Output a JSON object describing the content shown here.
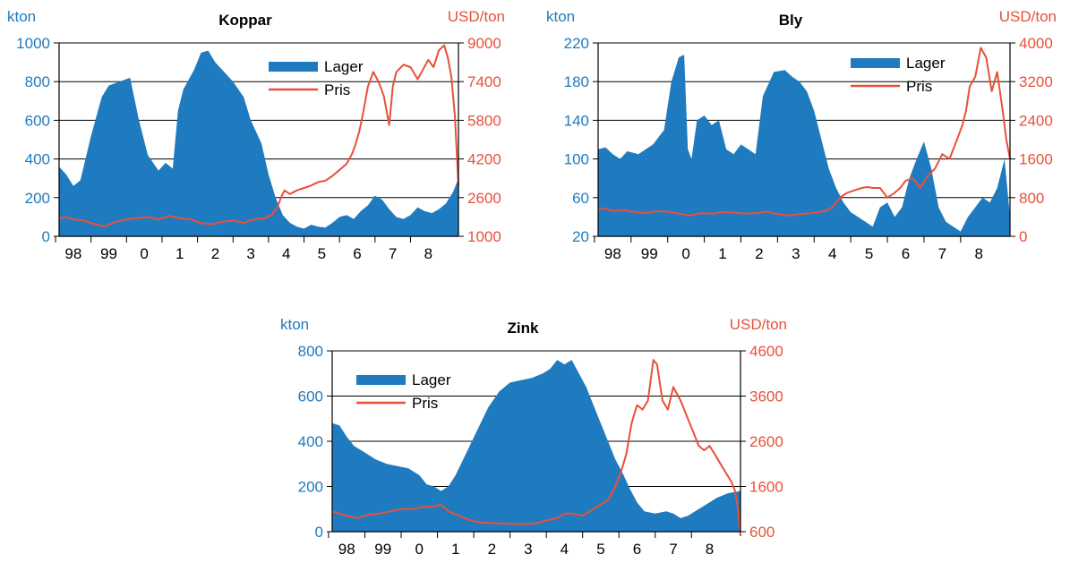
{
  "colors": {
    "lager": "#1f7bbf",
    "pris": "#e8503a",
    "axis_left": "#1f7bbf",
    "axis_right": "#e8503a",
    "grid": "#000000"
  },
  "x_tick_labels": [
    "98",
    "99",
    "0",
    "1",
    "2",
    "3",
    "4",
    "5",
    "6",
    "7",
    "8"
  ],
  "chart_data": [
    {
      "type": "area",
      "title": "Koppar",
      "left_unit": "kton",
      "right_unit": "USD/ton",
      "legend": [
        "Lager",
        "Pris"
      ],
      "legend_position": "top-right",
      "grid": true,
      "x_range": [
        1997.6,
        2008.85
      ],
      "x_ticks": [
        1998,
        1999,
        2000,
        2001,
        2002,
        2003,
        2004,
        2005,
        2006,
        2007,
        2008
      ],
      "left_axis": {
        "range": [
          0,
          1000
        ],
        "ticks": [
          "0",
          "200",
          "400",
          "600",
          "800",
          "1000"
        ]
      },
      "right_axis": {
        "range": [
          1000,
          9000
        ],
        "ticks": [
          "1000",
          "2600",
          "4200",
          "5800",
          "7400",
          "9000"
        ]
      },
      "series": [
        {
          "name": "Lager",
          "kind": "area",
          "axis": "left",
          "x": [
            1997.6,
            1997.8,
            1998.0,
            1998.2,
            1998.5,
            1998.8,
            1999.0,
            1999.3,
            1999.6,
            1999.85,
            2000.1,
            2000.4,
            2000.6,
            2000.8,
            2000.95,
            2001.1,
            2001.4,
            2001.6,
            2001.8,
            2002.0,
            2002.2,
            2002.5,
            2002.8,
            2003.0,
            2003.3,
            2003.5,
            2003.7,
            2003.9,
            2004.1,
            2004.3,
            2004.5,
            2004.7,
            2004.9,
            2005.1,
            2005.3,
            2005.5,
            2005.7,
            2005.9,
            2006.1,
            2006.3,
            2006.5,
            2006.7,
            2006.9,
            2007.1,
            2007.3,
            2007.5,
            2007.7,
            2007.9,
            2008.1,
            2008.3,
            2008.5,
            2008.7,
            2008.85
          ],
          "y": [
            360,
            320,
            260,
            290,
            520,
            720,
            780,
            800,
            820,
            600,
            420,
            340,
            380,
            350,
            650,
            760,
            860,
            950,
            960,
            900,
            860,
            800,
            720,
            600,
            480,
            320,
            200,
            110,
            70,
            50,
            40,
            60,
            50,
            45,
            70,
            100,
            110,
            90,
            130,
            160,
            210,
            190,
            140,
            100,
            90,
            110,
            150,
            130,
            120,
            140,
            170,
            230,
            300
          ]
        },
        {
          "name": "Pris",
          "kind": "line",
          "axis": "right",
          "x": [
            1997.6,
            1997.8,
            1998.0,
            1998.3,
            1998.6,
            1998.9,
            1999.2,
            1999.5,
            1999.8,
            2000.1,
            2000.4,
            2000.7,
            2001.0,
            2001.3,
            2001.6,
            2001.9,
            2002.2,
            2002.5,
            2002.8,
            2003.1,
            2003.4,
            2003.6,
            2003.75,
            2003.85,
            2003.95,
            2004.1,
            2004.3,
            2004.5,
            2004.7,
            2004.9,
            2005.1,
            2005.3,
            2005.5,
            2005.7,
            2005.85,
            2005.95,
            2006.05,
            2006.15,
            2006.3,
            2006.45,
            2006.6,
            2006.75,
            2006.9,
            2007.0,
            2007.1,
            2007.3,
            2007.5,
            2007.7,
            2007.85,
            2008.0,
            2008.15,
            2008.3,
            2008.45,
            2008.55,
            2008.65,
            2008.75,
            2008.85
          ],
          "y": [
            1750,
            1800,
            1700,
            1650,
            1500,
            1420,
            1600,
            1700,
            1750,
            1800,
            1700,
            1850,
            1750,
            1700,
            1550,
            1500,
            1600,
            1650,
            1550,
            1700,
            1750,
            1900,
            2200,
            2600,
            2900,
            2750,
            2900,
            3000,
            3100,
            3250,
            3300,
            3500,
            3750,
            4000,
            4400,
            4800,
            5300,
            6000,
            7200,
            7800,
            7400,
            6800,
            5600,
            7200,
            7800,
            8100,
            8000,
            7500,
            7900,
            8300,
            8000,
            8700,
            8900,
            8400,
            7600,
            6000,
            3100
          ]
        }
      ]
    },
    {
      "type": "area",
      "title": "Bly",
      "left_unit": "kton",
      "right_unit": "USD/ton",
      "legend": [
        "Lager",
        "Pris"
      ],
      "legend_position": "top-right",
      "grid": true,
      "x_range": [
        1997.6,
        2008.85
      ],
      "x_ticks": [
        1998,
        1999,
        2000,
        2001,
        2002,
        2003,
        2004,
        2005,
        2006,
        2007,
        2008
      ],
      "left_axis": {
        "range": [
          20,
          220
        ],
        "ticks": [
          "20",
          "60",
          "100",
          "140",
          "180",
          "220"
        ]
      },
      "right_axis": {
        "range": [
          0,
          4000
        ],
        "ticks": [
          "0",
          "800",
          "1600",
          "2400",
          "3200",
          "4000"
        ]
      },
      "series": [
        {
          "name": "Lager",
          "kind": "area",
          "axis": "left",
          "x": [
            1997.6,
            1997.8,
            1998.0,
            1998.2,
            1998.4,
            1998.7,
            1998.9,
            1999.1,
            1999.4,
            1999.6,
            1999.8,
            1999.95,
            2000.05,
            2000.15,
            2000.3,
            2000.5,
            2000.7,
            2000.9,
            2001.1,
            2001.3,
            2001.5,
            2001.7,
            2001.9,
            2002.1,
            2002.4,
            2002.7,
            2002.9,
            2003.1,
            2003.3,
            2003.5,
            2003.7,
            2003.9,
            2004.1,
            2004.3,
            2004.5,
            2004.7,
            2004.9,
            2005.1,
            2005.3,
            2005.5,
            2005.7,
            2005.9,
            2006.1,
            2006.3,
            2006.5,
            2006.7,
            2006.9,
            2007.1,
            2007.3,
            2007.5,
            2007.7,
            2007.9,
            2008.1,
            2008.3,
            2008.5,
            2008.7,
            2008.85
          ],
          "y": [
            110,
            112,
            105,
            100,
            108,
            105,
            110,
            115,
            130,
            180,
            205,
            208,
            110,
            100,
            140,
            145,
            135,
            140,
            110,
            105,
            115,
            110,
            105,
            165,
            190,
            192,
            185,
            180,
            170,
            150,
            120,
            90,
            70,
            55,
            45,
            40,
            35,
            30,
            50,
            55,
            40,
            50,
            80,
            100,
            118,
            90,
            50,
            35,
            30,
            25,
            40,
            50,
            60,
            55,
            70,
            100,
            40
          ]
        },
        {
          "name": "Pris",
          "kind": "line",
          "axis": "right",
          "x": [
            1997.6,
            1997.8,
            1998.0,
            1998.3,
            1998.6,
            1998.9,
            1999.2,
            1999.5,
            1999.8,
            2000.1,
            2000.4,
            2000.7,
            2001.0,
            2001.3,
            2001.6,
            2001.9,
            2002.2,
            2002.5,
            2002.8,
            2003.1,
            2003.4,
            2003.6,
            2003.8,
            2004.0,
            2004.2,
            2004.4,
            2004.6,
            2004.8,
            2004.95,
            2005.1,
            2005.3,
            2005.5,
            2005.7,
            2005.85,
            2006.0,
            2006.2,
            2006.4,
            2006.6,
            2006.8,
            2007.0,
            2007.2,
            2007.35,
            2007.45,
            2007.55,
            2007.65,
            2007.75,
            2007.9,
            2008.05,
            2008.2,
            2008.35,
            2008.5,
            2008.65,
            2008.75,
            2008.85
          ],
          "y": [
            550,
            580,
            520,
            540,
            500,
            480,
            520,
            510,
            470,
            430,
            480,
            470,
            500,
            490,
            470,
            480,
            510,
            460,
            430,
            460,
            480,
            500,
            520,
            600,
            800,
            900,
            950,
            1000,
            1020,
            1000,
            1000,
            800,
            900,
            1000,
            1150,
            1200,
            1000,
            1250,
            1400,
            1700,
            1600,
            1900,
            2100,
            2300,
            2600,
            3100,
            3300,
            3900,
            3700,
            3000,
            3400,
            2600,
            2000,
            1600
          ]
        }
      ]
    },
    {
      "type": "area",
      "title": "Zink",
      "left_unit": "kton",
      "right_unit": "USD/ton",
      "legend": [
        "Lager",
        "Pris"
      ],
      "legend_position": "top-left",
      "grid": true,
      "x_range": [
        1997.6,
        2008.85
      ],
      "x_ticks": [
        1998,
        1999,
        2000,
        2001,
        2002,
        2003,
        2004,
        2005,
        2006,
        2007,
        2008
      ],
      "left_axis": {
        "range": [
          0,
          800
        ],
        "ticks": [
          "0",
          "200",
          "400",
          "600",
          "800"
        ]
      },
      "right_axis": {
        "range": [
          600,
          4600
        ],
        "ticks": [
          "600",
          "1600",
          "2600",
          "3600",
          "4600"
        ]
      },
      "series": [
        {
          "name": "Lager",
          "kind": "area",
          "axis": "left",
          "x": [
            1997.6,
            1997.8,
            1998.0,
            1998.2,
            1998.5,
            1998.8,
            1999.1,
            1999.4,
            1999.7,
            2000.0,
            2000.2,
            2000.4,
            2000.6,
            2000.8,
            2001.0,
            2001.3,
            2001.6,
            2001.9,
            2002.2,
            2002.5,
            2002.8,
            2003.1,
            2003.4,
            2003.6,
            2003.8,
            2004.0,
            2004.2,
            2004.4,
            2004.6,
            2004.8,
            2005.0,
            2005.2,
            2005.4,
            2005.6,
            2005.8,
            2006.0,
            2006.2,
            2006.5,
            2006.8,
            2007.0,
            2007.2,
            2007.4,
            2007.6,
            2007.8,
            2008.0,
            2008.2,
            2008.5,
            2008.85
          ],
          "y": [
            480,
            470,
            420,
            380,
            350,
            320,
            300,
            290,
            280,
            250,
            210,
            200,
            180,
            200,
            250,
            350,
            450,
            550,
            620,
            660,
            670,
            680,
            700,
            720,
            760,
            740,
            760,
            700,
            640,
            560,
            480,
            400,
            320,
            260,
            190,
            130,
            90,
            80,
            90,
            80,
            60,
            70,
            90,
            110,
            130,
            150,
            170,
            180
          ]
        },
        {
          "name": "Pris",
          "kind": "line",
          "axis": "right",
          "x": [
            1997.6,
            1997.8,
            1998.0,
            1998.3,
            1998.6,
            1998.9,
            1999.2,
            1999.5,
            1999.8,
            2000.1,
            2000.4,
            2000.6,
            2000.8,
            2001.1,
            2001.4,
            2001.7,
            2002.0,
            2002.3,
            2002.6,
            2002.9,
            2003.2,
            2003.5,
            2003.8,
            2004.0,
            2004.2,
            2004.5,
            2004.8,
            2005.0,
            2005.2,
            2005.4,
            2005.55,
            2005.7,
            2005.85,
            2006.0,
            2006.15,
            2006.3,
            2006.45,
            2006.55,
            2006.7,
            2006.85,
            2007.0,
            2007.2,
            2007.4,
            2007.55,
            2007.7,
            2007.85,
            2008.0,
            2008.15,
            2008.3,
            2008.45,
            2008.6,
            2008.7,
            2008.78,
            2008.85
          ],
          "y": [
            1050,
            1000,
            950,
            900,
            980,
            1000,
            1050,
            1100,
            1100,
            1150,
            1150,
            1200,
            1050,
            950,
            850,
            800,
            790,
            780,
            770,
            770,
            780,
            850,
            900,
            1000,
            1000,
            950,
            1100,
            1200,
            1300,
            1600,
            1900,
            2300,
            3000,
            3400,
            3300,
            3500,
            4400,
            4300,
            3500,
            3300,
            3800,
            3500,
            3100,
            2800,
            2500,
            2400,
            2500,
            2300,
            2100,
            1900,
            1700,
            1500,
            1100,
            500
          ]
        }
      ]
    }
  ]
}
